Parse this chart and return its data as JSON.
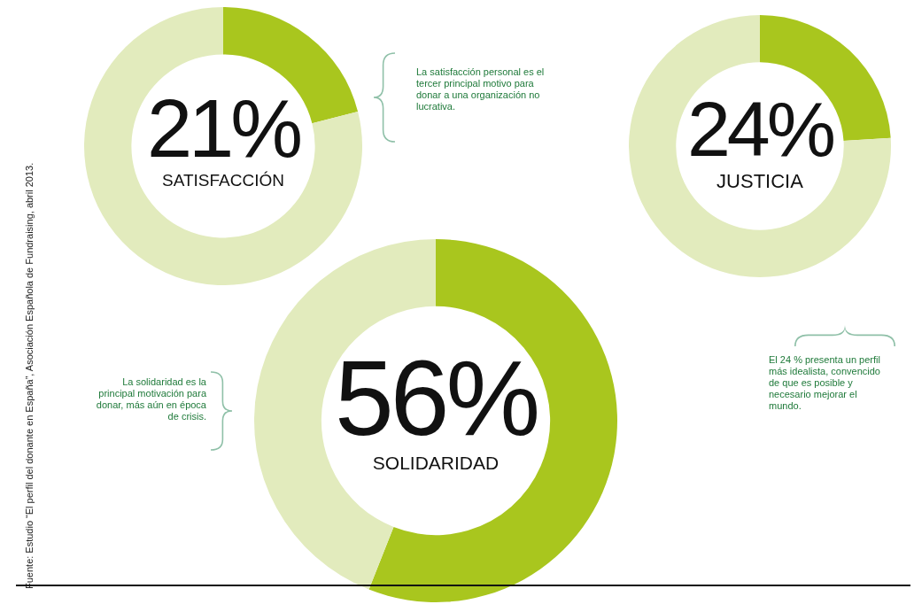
{
  "chart_data": [
    {
      "type": "donut",
      "categories": [
        "SATISFACCIÓN",
        null
      ],
      "values": [
        21,
        79
      ],
      "colors": [
        "#a9c61e",
        "#e2ebbd"
      ],
      "value_labels": [
        "21%",
        null
      ],
      "annotations": [
        "La satisfacción personal es el tercer principal motivo para donar a una organización no lucrativa.",
        "Fuente: Estudio “El perfil del donante en España”, Asociación Española de Fundraising, abril 2013."
      ]
    },
    {
      "type": "donut",
      "categories": [
        "JUSTICIA",
        null
      ],
      "values": [
        24,
        76
      ],
      "colors": [
        "#a9c61e",
        "#e2ebbd"
      ],
      "value_labels": [
        "24%",
        null
      ],
      "annotations": [
        "El 24 % presenta un perfil más idealista, convencido de que es posible y necesario mejorar el mundo."
      ]
    },
    {
      "type": "donut",
      "categories": [
        "SOLIDARIDAD",
        null
      ],
      "values": [
        56,
        44
      ],
      "colors": [
        "#a9c61e",
        "#e2ebbd"
      ],
      "value_labels": [
        "56%",
        null
      ],
      "annotations": [
        "La solidaridad es la principal motivación para donar, más aún en época de crisis."
      ]
    }
  ]
}
